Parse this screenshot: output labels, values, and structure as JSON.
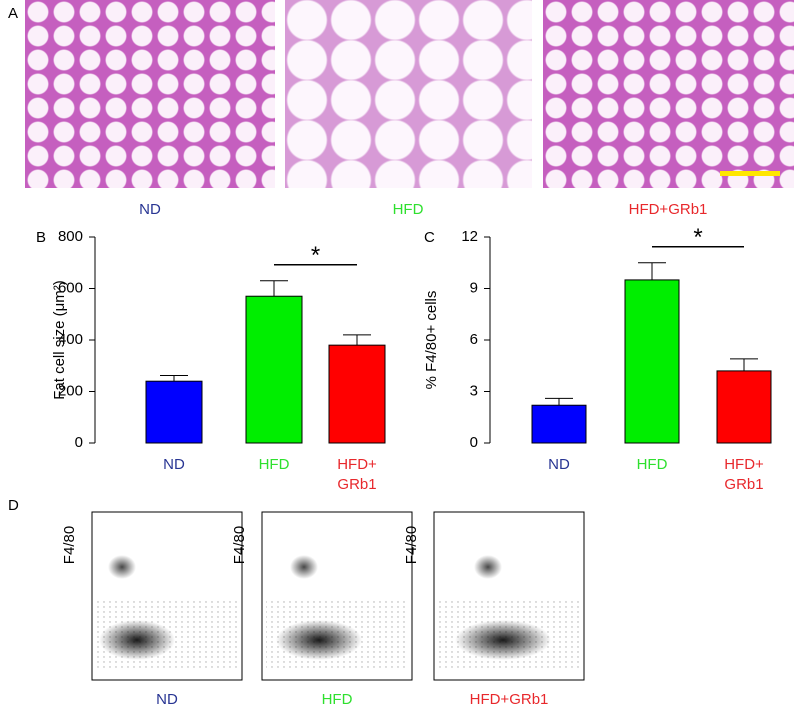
{
  "panel_labels": [
    "A",
    "B",
    "C",
    "D"
  ],
  "micrographs": {
    "labels": [
      "ND",
      "HFD",
      "HFD+GRb1"
    ],
    "label_colors": [
      "#283593",
      "#2ee02e",
      "#e8282c"
    ]
  },
  "chart_data": [
    {
      "type": "bar",
      "y_label": "Fat cell size (μm²)",
      "categories": [
        "ND",
        "HFD",
        "HFD+\nGRb1"
      ],
      "category_colors": [
        "#283593",
        "#2ee02e",
        "#e8282c"
      ],
      "colors": [
        "#0000ff",
        "#00ee00",
        "#ff0000"
      ],
      "values": [
        240,
        570,
        380
      ],
      "errors": [
        22,
        60,
        40
      ],
      "ylim": [
        0,
        800
      ],
      "yticks": [
        0,
        200,
        400,
        600,
        800
      ],
      "significance": {
        "label": "*",
        "from": 1,
        "to": 2
      }
    },
    {
      "type": "bar",
      "y_label": "% F4/80+ cells",
      "categories": [
        "ND",
        "HFD",
        "HFD+\nGRb1"
      ],
      "category_colors": [
        "#283593",
        "#2ee02e",
        "#e8282c"
      ],
      "colors": [
        "#0000ff",
        "#00ee00",
        "#ff0000"
      ],
      "values": [
        2.2,
        9.5,
        4.2
      ],
      "errors": [
        0.4,
        1.0,
        0.7
      ],
      "ylim": [
        0,
        12
      ],
      "yticks": [
        0,
        3,
        6,
        9,
        12
      ],
      "significance": {
        "label": "*",
        "from": 1,
        "to": 2
      }
    }
  ],
  "flow": {
    "y_label": "F4/80",
    "labels": [
      "ND",
      "HFD",
      "HFD+GRb1"
    ],
    "label_colors": [
      "#283593",
      "#2ee02e",
      "#e8282c"
    ]
  }
}
